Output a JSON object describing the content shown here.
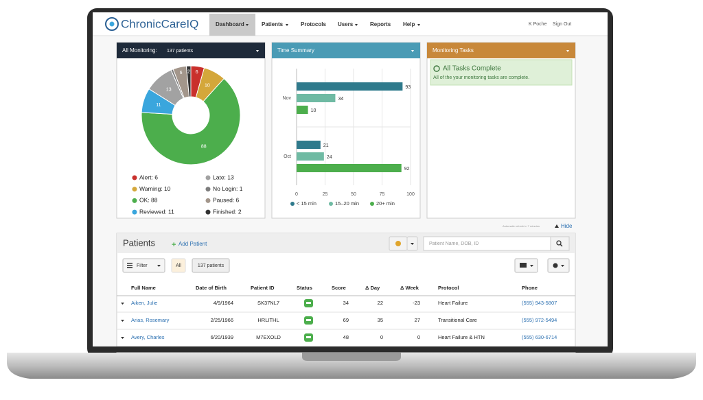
{
  "header": {
    "logo": "ChronicCareIQ",
    "nav": [
      "Dashboard",
      "Patients",
      "Protocols",
      "Users",
      "Reports",
      "Help"
    ],
    "user": "K Poche",
    "sign_out": "Sign Out"
  },
  "monitoring": {
    "title": "All Monitoring:",
    "count": "137 patients"
  },
  "time_summary": {
    "title": "Time Summary"
  },
  "tasks": {
    "title": "Monitoring Tasks",
    "status": "All Tasks Complete",
    "message": "All of the your monitoring tasks are complete."
  },
  "refresh_note": "Automatic refresh in 7 minutes",
  "hide": "Hide",
  "patients": {
    "title": "Patients",
    "add": "Add Patient",
    "search_placeholder": "Patient Name, DOB, ID",
    "filter": "Filter",
    "all": "All",
    "count": "137 patients",
    "columns": [
      "Full Name",
      "Date of Birth",
      "Patient ID",
      "Status",
      "Score",
      "Δ Day",
      "Δ Week",
      "Protocol",
      "Phone"
    ],
    "rows": [
      [
        "Aiken, Julie",
        "4/9/1964",
        "SK37NL7",
        34,
        22,
        -23,
        "Heart Failure",
        "(555) 943-5807"
      ],
      [
        "Arias, Rosemary",
        "2/25/1966",
        "HRLITHL",
        69,
        35,
        27,
        "Transitional Care",
        "(555) 972-5494"
      ],
      [
        "Avery, Charles",
        "6/20/1939",
        "M7EXOLD",
        48,
        0,
        0,
        "Heart Failure & HTN",
        "(555) 630-6714"
      ]
    ]
  },
  "chart_data": [
    {
      "type": "pie",
      "legend_labels": [
        "Alert: 6",
        "Warning: 10",
        "OK: 88",
        "Reviewed: 11",
        "Late: 13",
        "No Login: 1",
        "Paused: 6",
        "Finished: 2"
      ],
      "values": [
        6,
        10,
        88,
        11,
        13,
        1,
        6,
        2
      ],
      "colors": [
        "#c9302c",
        "#d4a73a",
        "#4cae4c",
        "#3aa6dd",
        "#a2a2a2",
        "#7d7d7d",
        "#a3968b",
        "#333333"
      ]
    },
    {
      "type": "bar",
      "orientation": "horizontal",
      "categories": [
        "Nov",
        "Oct"
      ],
      "series": [
        {
          "name": "< 15 min",
          "color": "#2f7a8c",
          "values": [
            93,
            21
          ]
        },
        {
          "name": "15–20 min",
          "color": "#6fbaa3",
          "values": [
            34,
            24
          ]
        },
        {
          "name": "20+ min",
          "color": "#4cae4c",
          "values": [
            10,
            92
          ]
        }
      ],
      "xlim": [
        0,
        100
      ],
      "xticks": [
        0,
        25,
        50,
        75,
        100
      ],
      "grid": true
    }
  ]
}
